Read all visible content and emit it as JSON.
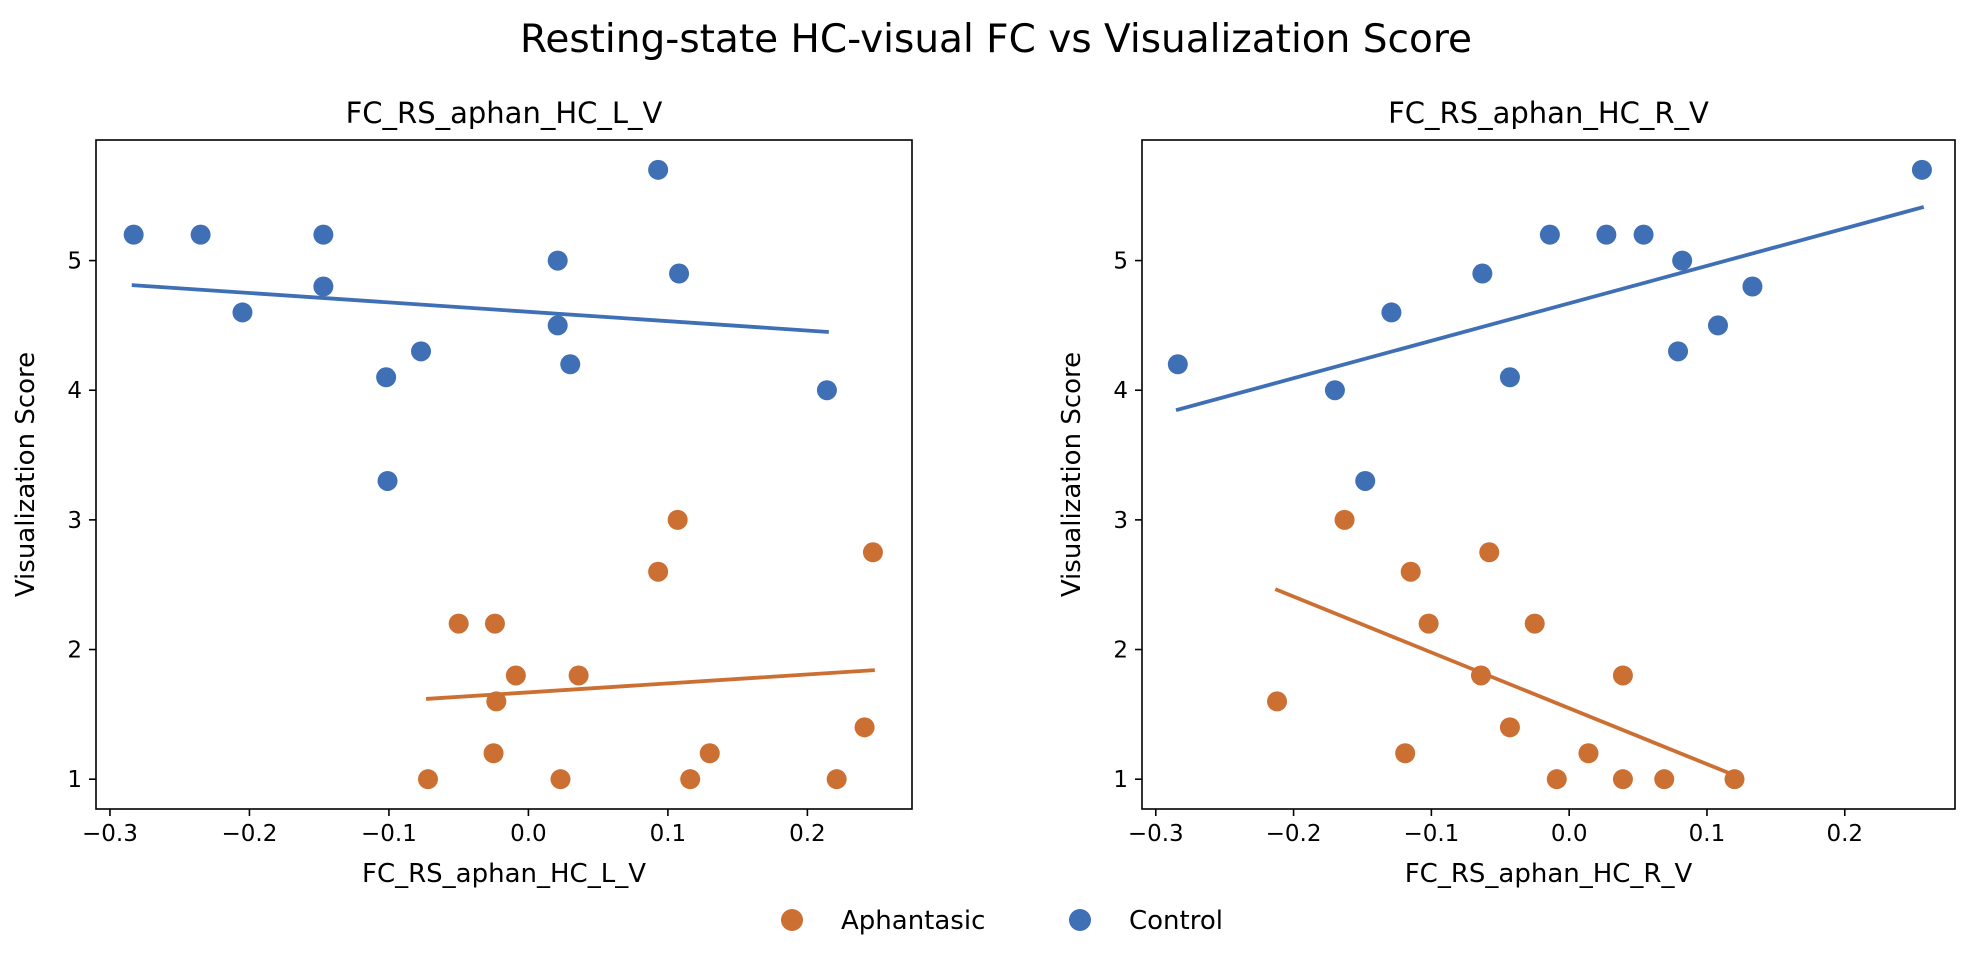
{
  "figure_title": "Resting-state HC-visual FC vs Visualization Score",
  "legend": [
    {
      "label": "Aphantasic",
      "color": "#cc6f32"
    },
    {
      "label": "Control",
      "color": "#3f6fb5"
    }
  ],
  "chart_data": [
    {
      "type": "scatter",
      "title": "FC_RS_aphan_HC_L_V",
      "xlabel": "FC_RS_aphan_HC_L_V",
      "ylabel": "Visualization Score",
      "xlim": [
        -0.31,
        0.275
      ],
      "ylim": [
        0.77,
        5.93
      ],
      "xticks": [
        -0.3,
        -0.2,
        -0.1,
        0.0,
        0.1,
        0.2
      ],
      "xtick_labels": [
        "−0.3",
        "−0.2",
        "−0.1",
        "0.0",
        "0.1",
        "0.2"
      ],
      "yticks": [
        1,
        2,
        3,
        4,
        5
      ],
      "ytick_labels": [
        "1",
        "2",
        "3",
        "4",
        "5"
      ],
      "grid": false,
      "series": [
        {
          "name": "Aphantasic",
          "color": "#cc6f32",
          "points": [
            [
              -0.072,
              1.0
            ],
            [
              -0.05,
              2.2
            ],
            [
              -0.025,
              1.2
            ],
            [
              -0.024,
              2.2
            ],
            [
              -0.023,
              1.6
            ],
            [
              -0.009,
              1.8
            ],
            [
              0.023,
              1.0
            ],
            [
              0.036,
              1.8
            ],
            [
              0.093,
              2.6
            ],
            [
              0.107,
              3.0
            ],
            [
              0.116,
              1.0
            ],
            [
              0.13,
              1.2
            ],
            [
              0.221,
              1.0
            ],
            [
              0.241,
              1.4
            ],
            [
              0.247,
              2.75
            ]
          ],
          "fit": {
            "x": [
              -0.072,
              0.247
            ],
            "y": [
              1.62,
              1.84
            ]
          }
        },
        {
          "name": "Control",
          "color": "#3f6fb5",
          "points": [
            [
              -0.283,
              5.2
            ],
            [
              -0.235,
              5.2
            ],
            [
              -0.205,
              4.6
            ],
            [
              -0.147,
              5.2
            ],
            [
              -0.147,
              4.8
            ],
            [
              -0.102,
              4.1
            ],
            [
              -0.101,
              3.3
            ],
            [
              -0.077,
              4.3
            ],
            [
              0.021,
              5.0
            ],
            [
              0.021,
              4.5
            ],
            [
              0.03,
              4.2
            ],
            [
              0.093,
              5.7
            ],
            [
              0.108,
              4.9
            ],
            [
              0.214,
              4.0
            ]
          ],
          "fit": {
            "x": [
              -0.283,
              0.214
            ],
            "y": [
              4.81,
              4.45
            ]
          }
        }
      ]
    },
    {
      "type": "scatter",
      "title": "FC_RS_aphan_HC_R_V",
      "xlabel": "FC_RS_aphan_HC_R_V",
      "ylabel": "Visualization Score",
      "xlim": [
        -0.31,
        0.28
      ],
      "ylim": [
        0.77,
        5.93
      ],
      "xticks": [
        -0.3,
        -0.2,
        -0.1,
        0.0,
        0.1,
        0.2
      ],
      "xtick_labels": [
        "−0.3",
        "−0.2",
        "−0.1",
        "0.0",
        "0.1",
        "0.2"
      ],
      "yticks": [
        1,
        2,
        3,
        4,
        5
      ],
      "ytick_labels": [
        "1",
        "2",
        "3",
        "4",
        "5"
      ],
      "grid": false,
      "series": [
        {
          "name": "Aphantasic",
          "color": "#cc6f32",
          "points": [
            [
              -0.212,
              1.6
            ],
            [
              -0.163,
              3.0
            ],
            [
              -0.119,
              1.2
            ],
            [
              -0.115,
              2.6
            ],
            [
              -0.102,
              2.2
            ],
            [
              -0.064,
              1.8
            ],
            [
              -0.058,
              2.75
            ],
            [
              -0.043,
              1.4
            ],
            [
              -0.025,
              2.2
            ],
            [
              -0.009,
              1.0
            ],
            [
              0.014,
              1.2
            ],
            [
              0.039,
              1.8
            ],
            [
              0.039,
              1.0
            ],
            [
              0.069,
              1.0
            ],
            [
              0.12,
              1.0
            ]
          ],
          "fit": {
            "x": [
              -0.212,
              0.12
            ],
            "y": [
              2.46,
              1.03
            ]
          }
        },
        {
          "name": "Control",
          "color": "#3f6fb5",
          "points": [
            [
              -0.284,
              4.2
            ],
            [
              -0.17,
              4.0
            ],
            [
              -0.148,
              3.3
            ],
            [
              -0.129,
              4.6
            ],
            [
              -0.063,
              4.9
            ],
            [
              -0.043,
              4.1
            ],
            [
              -0.014,
              5.2
            ],
            [
              0.027,
              5.2
            ],
            [
              0.054,
              5.2
            ],
            [
              0.079,
              4.3
            ],
            [
              0.082,
              5.0
            ],
            [
              0.108,
              4.5
            ],
            [
              0.133,
              4.8
            ],
            [
              0.256,
              5.7
            ]
          ],
          "fit": {
            "x": [
              -0.284,
              0.256
            ],
            "y": [
              3.85,
              5.41
            ]
          }
        }
      ]
    }
  ]
}
